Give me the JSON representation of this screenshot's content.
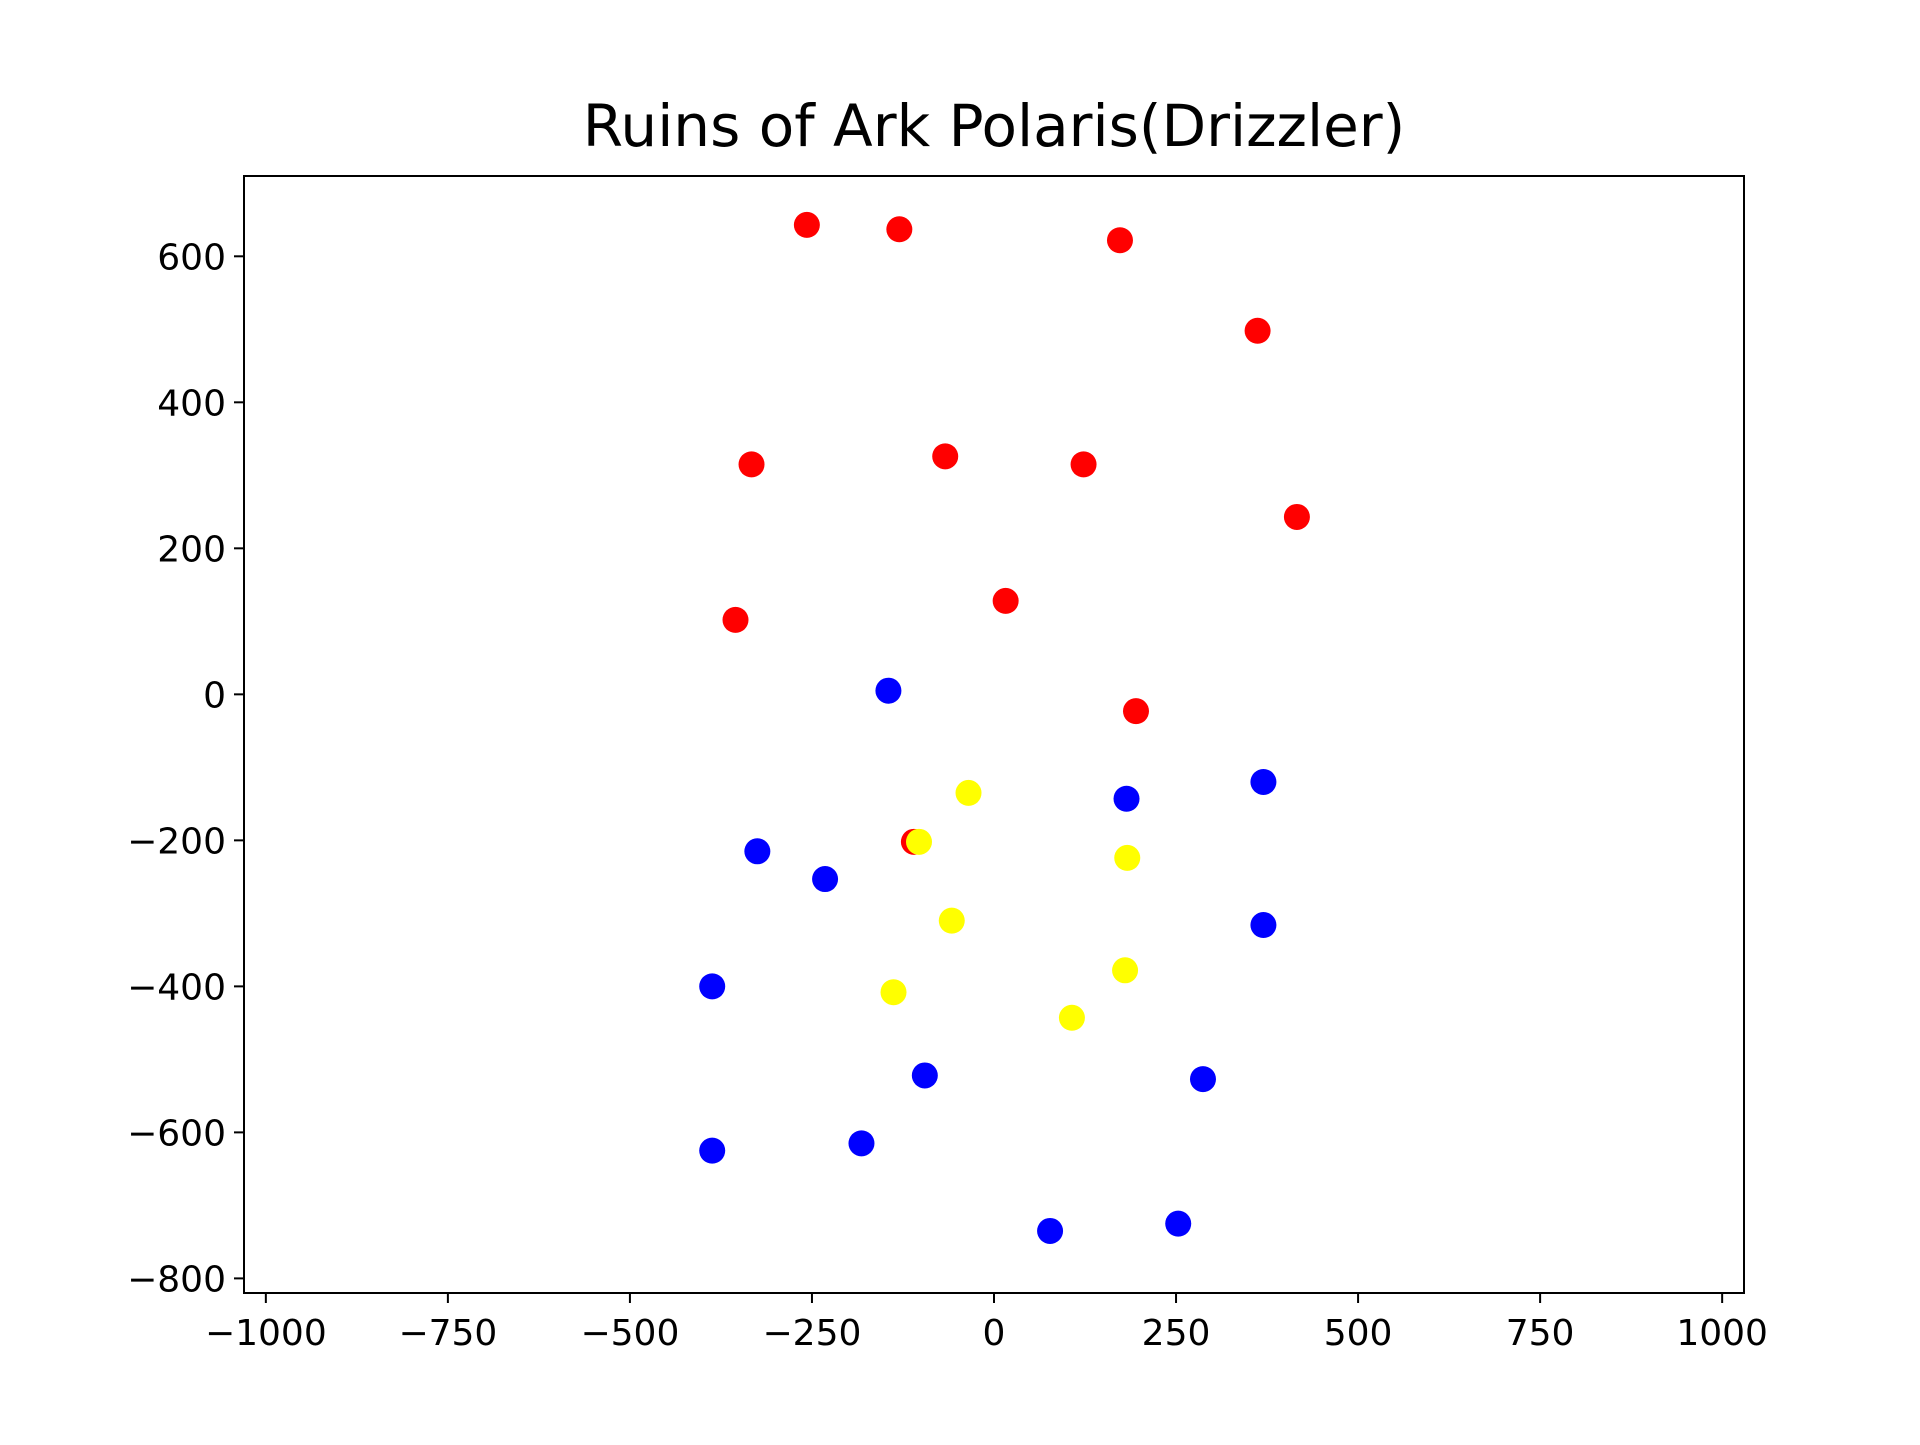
{
  "chart_data": {
    "type": "scatter",
    "title": "Ruins of Ark Polaris(Drizzler)",
    "xlabel": "",
    "ylabel": "",
    "xlim": [
      -1030,
      1030
    ],
    "ylim": [
      -820,
      710
    ],
    "grid": false,
    "legend": "none",
    "x_ticks": [
      {
        "value": -1000,
        "label": "−1000"
      },
      {
        "value": -750,
        "label": "−750"
      },
      {
        "value": -500,
        "label": "−500"
      },
      {
        "value": -250,
        "label": "−250"
      },
      {
        "value": 0,
        "label": "0"
      },
      {
        "value": 250,
        "label": "250"
      },
      {
        "value": 500,
        "label": "500"
      },
      {
        "value": 750,
        "label": "750"
      },
      {
        "value": 1000,
        "label": "1000"
      }
    ],
    "y_ticks": [
      {
        "value": 600,
        "label": "600"
      },
      {
        "value": 400,
        "label": "400"
      },
      {
        "value": 200,
        "label": "200"
      },
      {
        "value": 0,
        "label": "0"
      },
      {
        "value": -200,
        "label": "−200"
      },
      {
        "value": -400,
        "label": "−400"
      },
      {
        "value": -600,
        "label": "−600"
      },
      {
        "value": -800,
        "label": "−800"
      }
    ],
    "series": [
      {
        "color": "#ff0000",
        "points": [
          {
            "x": -257,
            "y": 643
          },
          {
            "x": -130,
            "y": 637
          },
          {
            "x": 173,
            "y": 622
          },
          {
            "x": 362,
            "y": 498
          },
          {
            "x": -333,
            "y": 315
          },
          {
            "x": -67,
            "y": 326
          },
          {
            "x": 123,
            "y": 315
          },
          {
            "x": 416,
            "y": 243
          },
          {
            "x": -355,
            "y": 102
          },
          {
            "x": 16,
            "y": 128
          },
          {
            "x": 195,
            "y": -23
          },
          {
            "x": -110,
            "y": -202
          }
        ]
      },
      {
        "color": "#0000ff",
        "points": [
          {
            "x": -145,
            "y": 5
          },
          {
            "x": 182,
            "y": -143
          },
          {
            "x": 370,
            "y": -120
          },
          {
            "x": -325,
            "y": -215
          },
          {
            "x": -232,
            "y": -253
          },
          {
            "x": 370,
            "y": -316
          },
          {
            "x": -387,
            "y": -400
          },
          {
            "x": -95,
            "y": -522
          },
          {
            "x": 287,
            "y": -527
          },
          {
            "x": -387,
            "y": -625
          },
          {
            "x": -182,
            "y": -615
          },
          {
            "x": 77,
            "y": -735
          },
          {
            "x": 253,
            "y": -725
          }
        ]
      },
      {
        "color": "#ffff00",
        "points": [
          {
            "x": -35,
            "y": -135
          },
          {
            "x": -103,
            "y": -202
          },
          {
            "x": 183,
            "y": -224
          },
          {
            "x": -58,
            "y": -310
          },
          {
            "x": 180,
            "y": -378
          },
          {
            "x": -138,
            "y": -408
          },
          {
            "x": 107,
            "y": -443
          }
        ]
      }
    ]
  }
}
